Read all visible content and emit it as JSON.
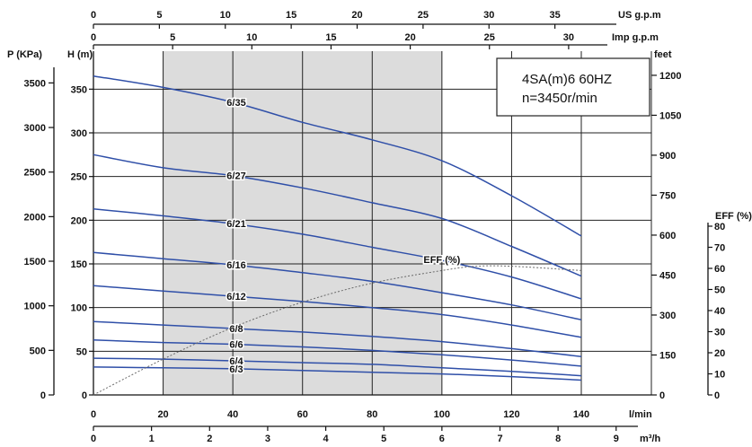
{
  "chart_data": {
    "type": "line",
    "model_box": {
      "line1": "4SA(m)6  60HZ",
      "line2": "n=3450r/min"
    },
    "x_axis_lmin": {
      "label": "l/min",
      "range": [
        0,
        140
      ],
      "ticks": [
        "0",
        "20",
        "40",
        "60",
        "80",
        "100",
        "120",
        "140"
      ]
    },
    "x_axis_m3h": {
      "label": "m³/h",
      "range": [
        0,
        9.5
      ],
      "ticks": [
        "0",
        "1",
        "2",
        "3",
        "4",
        "5",
        "6",
        "7",
        "8",
        "9"
      ]
    },
    "x_axis_usgpm": {
      "label": "US g.p.m",
      "range": [
        0,
        37
      ],
      "ticks": [
        "0",
        "5",
        "10",
        "15",
        "20",
        "25",
        "30",
        "35"
      ]
    },
    "x_axis_impgpm": {
      "label": "Imp g.p.m",
      "range": [
        0,
        30.8
      ],
      "ticks": [
        "0",
        "5",
        "10",
        "15",
        "20",
        "25",
        "30"
      ]
    },
    "y_axis_head_m": {
      "label": "H (m)",
      "range": [
        0,
        375
      ],
      "ticks": [
        "0",
        "50",
        "100",
        "150",
        "200",
        "250",
        "300",
        "350"
      ]
    },
    "y_axis_pressure_kpa": {
      "label": "P (KPa)",
      "range": [
        0,
        3675
      ],
      "ticks": [
        "0",
        "500",
        "1000",
        "1500",
        "2000",
        "2500",
        "3000",
        "3500"
      ]
    },
    "y_axis_feet": {
      "label": "feet",
      "range": [
        0,
        1230
      ],
      "ticks": [
        "0",
        "150",
        "300",
        "450",
        "600",
        "750",
        "900",
        "1050",
        "1200"
      ]
    },
    "y_axis_eff": {
      "label": "EFF (%)",
      "range": [
        0,
        80
      ],
      "ticks": [
        "0",
        "10",
        "20",
        "30",
        "40",
        "50",
        "60",
        "70",
        "80"
      ]
    },
    "shaded_x_bands": [
      [
        20,
        40
      ],
      [
        40,
        60
      ],
      [
        60,
        80
      ],
      [
        80,
        100
      ]
    ],
    "series": [
      {
        "name": "6/35",
        "x": [
          0,
          20,
          40,
          60,
          80,
          100,
          120,
          140
        ],
        "y": [
          365,
          352,
          335,
          312,
          292,
          268,
          228,
          182
        ]
      },
      {
        "name": "6/27",
        "x": [
          0,
          20,
          40,
          60,
          80,
          100,
          120,
          140
        ],
        "y": [
          275,
          260,
          251,
          237,
          220,
          202,
          170,
          136
        ]
      },
      {
        "name": "6/21",
        "x": [
          0,
          20,
          40,
          60,
          80,
          100,
          120,
          140
        ],
        "y": [
          213,
          205,
          196,
          184,
          169,
          154,
          135,
          110
        ]
      },
      {
        "name": "6/16",
        "x": [
          0,
          20,
          40,
          60,
          80,
          100,
          120,
          140
        ],
        "y": [
          163,
          156,
          149,
          140,
          130,
          117,
          103,
          86
        ]
      },
      {
        "name": "6/12",
        "x": [
          0,
          20,
          40,
          60,
          80,
          100,
          120,
          140
        ],
        "y": [
          125,
          119,
          113,
          107,
          100,
          92,
          80,
          66
        ]
      },
      {
        "name": "6/8",
        "x": [
          0,
          20,
          40,
          60,
          80,
          100,
          120,
          140
        ],
        "y": [
          84,
          80,
          76,
          72,
          67,
          61,
          53,
          44
        ]
      },
      {
        "name": "6/6",
        "x": [
          0,
          20,
          40,
          60,
          80,
          100,
          120,
          140
        ],
        "y": [
          63,
          60,
          58,
          55,
          51,
          46,
          40,
          33
        ]
      },
      {
        "name": "6/4",
        "x": [
          0,
          20,
          40,
          60,
          80,
          100,
          120,
          140
        ],
        "y": [
          42,
          41,
          39,
          37,
          35,
          31,
          27,
          22
        ]
      },
      {
        "name": "6/3",
        "x": [
          0,
          20,
          40,
          60,
          80,
          100,
          120,
          140
        ],
        "y": [
          32,
          31,
          30,
          28,
          26,
          24,
          21,
          17
        ]
      }
    ],
    "efficiency": {
      "name": "EFF (%)",
      "x": [
        0,
        20,
        40,
        60,
        80,
        100,
        110,
        120,
        140
      ],
      "y": [
        0,
        17,
        32,
        44,
        53,
        59,
        61,
        61,
        59
      ]
    }
  }
}
